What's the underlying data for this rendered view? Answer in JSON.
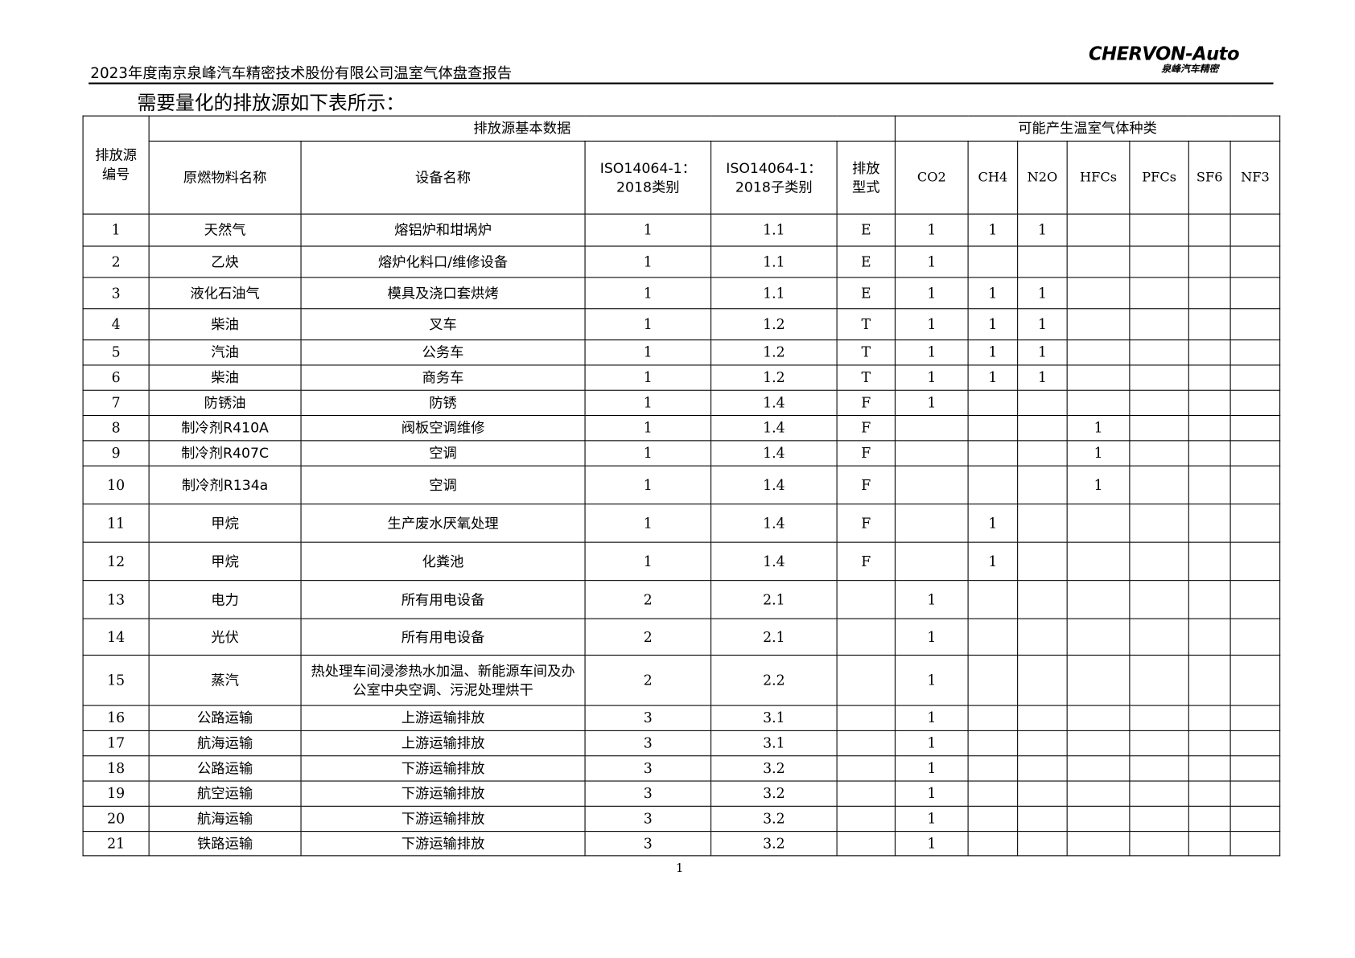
{
  "header": {
    "title": "2023年度南京泉峰汽车精密技术股份有限公司温室气体盘查报告",
    "logo_en": "CHERVON-Auto",
    "logo_cn": "泉峰汽车精密"
  },
  "intro": "需要量化的排放源如下表所示：",
  "table": {
    "group_headers": {
      "id": "排放源编号",
      "basic": "排放源基本数据",
      "gases": "可能产生温室气体种类"
    },
    "columns": [
      "原燃物料名称",
      "设备名称",
      "ISO14064-1：2018类别",
      "ISO14064-1：2018子类别",
      "排放型式",
      "CO2",
      "CH4",
      "N2O",
      "HFCs",
      "PFCs",
      "SF6",
      "NF3"
    ],
    "rows": [
      [
        "1",
        "天然气",
        "熔铝炉和坩埚炉",
        "1",
        "1.1",
        "E",
        "1",
        "1",
        "1",
        "",
        "",
        "",
        ""
      ],
      [
        "2",
        "乙炔",
        "熔炉化料口/维修设备",
        "1",
        "1.1",
        "E",
        "1",
        "",
        "",
        "",
        "",
        "",
        ""
      ],
      [
        "3",
        "液化石油气",
        "模具及浇口套烘烤",
        "1",
        "1.1",
        "E",
        "1",
        "1",
        "1",
        "",
        "",
        "",
        ""
      ],
      [
        "4",
        "柴油",
        "叉车",
        "1",
        "1.2",
        "T",
        "1",
        "1",
        "1",
        "",
        "",
        "",
        ""
      ],
      [
        "5",
        "汽油",
        "公务车",
        "1",
        "1.2",
        "T",
        "1",
        "1",
        "1",
        "",
        "",
        "",
        ""
      ],
      [
        "6",
        "柴油",
        "商务车",
        "1",
        "1.2",
        "T",
        "1",
        "1",
        "1",
        "",
        "",
        "",
        ""
      ],
      [
        "7",
        "防锈油",
        "防锈",
        "1",
        "1.4",
        "F",
        "1",
        "",
        "",
        "",
        "",
        "",
        ""
      ],
      [
        "8",
        "制冷剂R410A",
        "阀板空调维修",
        "1",
        "1.4",
        "F",
        "",
        "",
        "",
        "1",
        "",
        "",
        ""
      ],
      [
        "9",
        "制冷剂R407C",
        "空调",
        "1",
        "1.4",
        "F",
        "",
        "",
        "",
        "1",
        "",
        "",
        ""
      ],
      [
        "10",
        "制冷剂R134a",
        "空调",
        "1",
        "1.4",
        "F",
        "",
        "",
        "",
        "1",
        "",
        "",
        ""
      ],
      [
        "11",
        "甲烷",
        "生产废水厌氧处理",
        "1",
        "1.4",
        "F",
        "",
        "1",
        "",
        "",
        "",
        "",
        ""
      ],
      [
        "12",
        "甲烷",
        "化粪池",
        "1",
        "1.4",
        "F",
        "",
        "1",
        "",
        "",
        "",
        "",
        ""
      ],
      [
        "13",
        "电力",
        "所有用电设备",
        "2",
        "2.1",
        "",
        "1",
        "",
        "",
        "",
        "",
        "",
        ""
      ],
      [
        "14",
        "光伏",
        "所有用电设备",
        "2",
        "2.1",
        "",
        "1",
        "",
        "",
        "",
        "",
        "",
        ""
      ],
      [
        "15",
        "蒸汽",
        "热处理车间浸渗热水加温、新能源车间及办公室中央空调、污泥处理烘干",
        "2",
        "2.2",
        "",
        "1",
        "",
        "",
        "",
        "",
        "",
        ""
      ],
      [
        "16",
        "公路运输",
        "上游运输排放",
        "3",
        "3.1",
        "",
        "1",
        "",
        "",
        "",
        "",
        "",
        ""
      ],
      [
        "17",
        "航海运输",
        "上游运输排放",
        "3",
        "3.1",
        "",
        "1",
        "",
        "",
        "",
        "",
        "",
        ""
      ],
      [
        "18",
        "公路运输",
        "下游运输排放",
        "3",
        "3.2",
        "",
        "1",
        "",
        "",
        "",
        "",
        "",
        ""
      ],
      [
        "19",
        "航空运输",
        "下游运输排放",
        "3",
        "3.2",
        "",
        "1",
        "",
        "",
        "",
        "",
        "",
        ""
      ],
      [
        "20",
        "航海运输",
        "下游运输排放",
        "3",
        "3.2",
        "",
        "1",
        "",
        "",
        "",
        "",
        "",
        ""
      ],
      [
        "21",
        "铁路运输",
        "下游运输排放",
        "3",
        "3.2",
        "",
        "1",
        "",
        "",
        "",
        "",
        "",
        ""
      ]
    ]
  },
  "page_number": "1"
}
